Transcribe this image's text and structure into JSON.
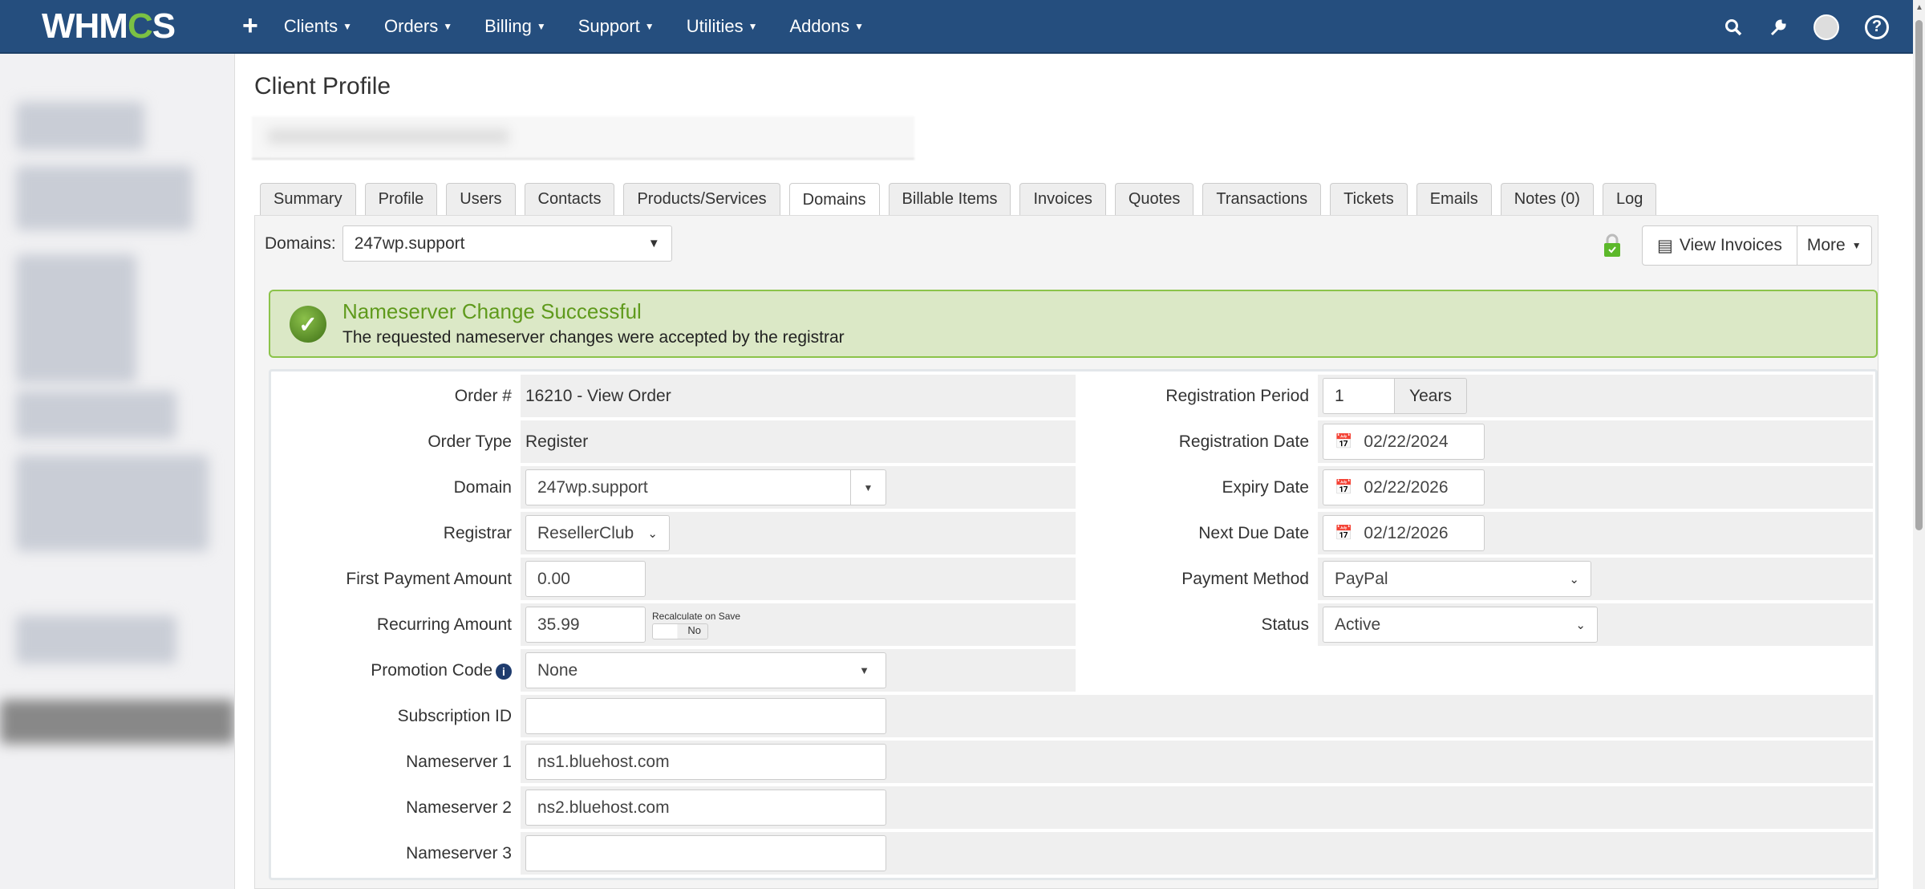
{
  "nav": {
    "logo": "WHMCS",
    "add": "+",
    "menus": [
      "Clients",
      "Orders",
      "Billing",
      "Support",
      "Utilities",
      "Addons"
    ],
    "icons": [
      "search-icon",
      "wrench-icon",
      "user-avatar",
      "help-icon"
    ]
  },
  "page": {
    "title": "Client Profile"
  },
  "tabs": [
    "Summary",
    "Profile",
    "Users",
    "Contacts",
    "Products/Services",
    "Domains",
    "Billable Items",
    "Invoices",
    "Quotes",
    "Transactions",
    "Tickets",
    "Emails",
    "Notes (0)",
    "Log"
  ],
  "active_tab": "Domains",
  "toolbar": {
    "domains_label": "Domains:",
    "domain_selected": "247wp.support",
    "view_invoices": "View Invoices",
    "more": "More"
  },
  "alert": {
    "title": "Nameserver Change Successful",
    "message": "The requested nameserver changes were accepted by the registrar",
    "color": "#5f9a1c"
  },
  "form": {
    "order_label": "Order #",
    "order_value": "16210 - View Order",
    "order_type_label": "Order Type",
    "order_type_value": "Register",
    "domain_label": "Domain",
    "domain_value": "247wp.support",
    "registrar_label": "Registrar",
    "registrar_value": "ResellerClub",
    "first_payment_label": "First Payment Amount",
    "first_payment_value": "0.00",
    "recurring_label": "Recurring Amount",
    "recurring_value": "35.99",
    "recalc_label": "Recalculate on Save",
    "recalc_value": "No",
    "promo_label": "Promotion Code",
    "promo_value": "None",
    "subscription_label": "Subscription ID",
    "subscription_value": "",
    "ns1_label": "Nameserver 1",
    "ns1_value": "ns1.bluehost.com",
    "ns2_label": "Nameserver 2",
    "ns2_value": "ns2.bluehost.com",
    "ns3_label": "Nameserver 3",
    "ns3_value": "",
    "reg_period_label": "Registration Period",
    "reg_period_value": "1",
    "reg_period_unit": "Years",
    "reg_date_label": "Registration Date",
    "reg_date_value": "02/22/2024",
    "expiry_label": "Expiry Date",
    "expiry_value": "02/22/2026",
    "next_due_label": "Next Due Date",
    "next_due_value": "02/12/2026",
    "payment_label": "Payment Method",
    "payment_value": "PayPal",
    "status_label": "Status",
    "status_value": "Active"
  }
}
